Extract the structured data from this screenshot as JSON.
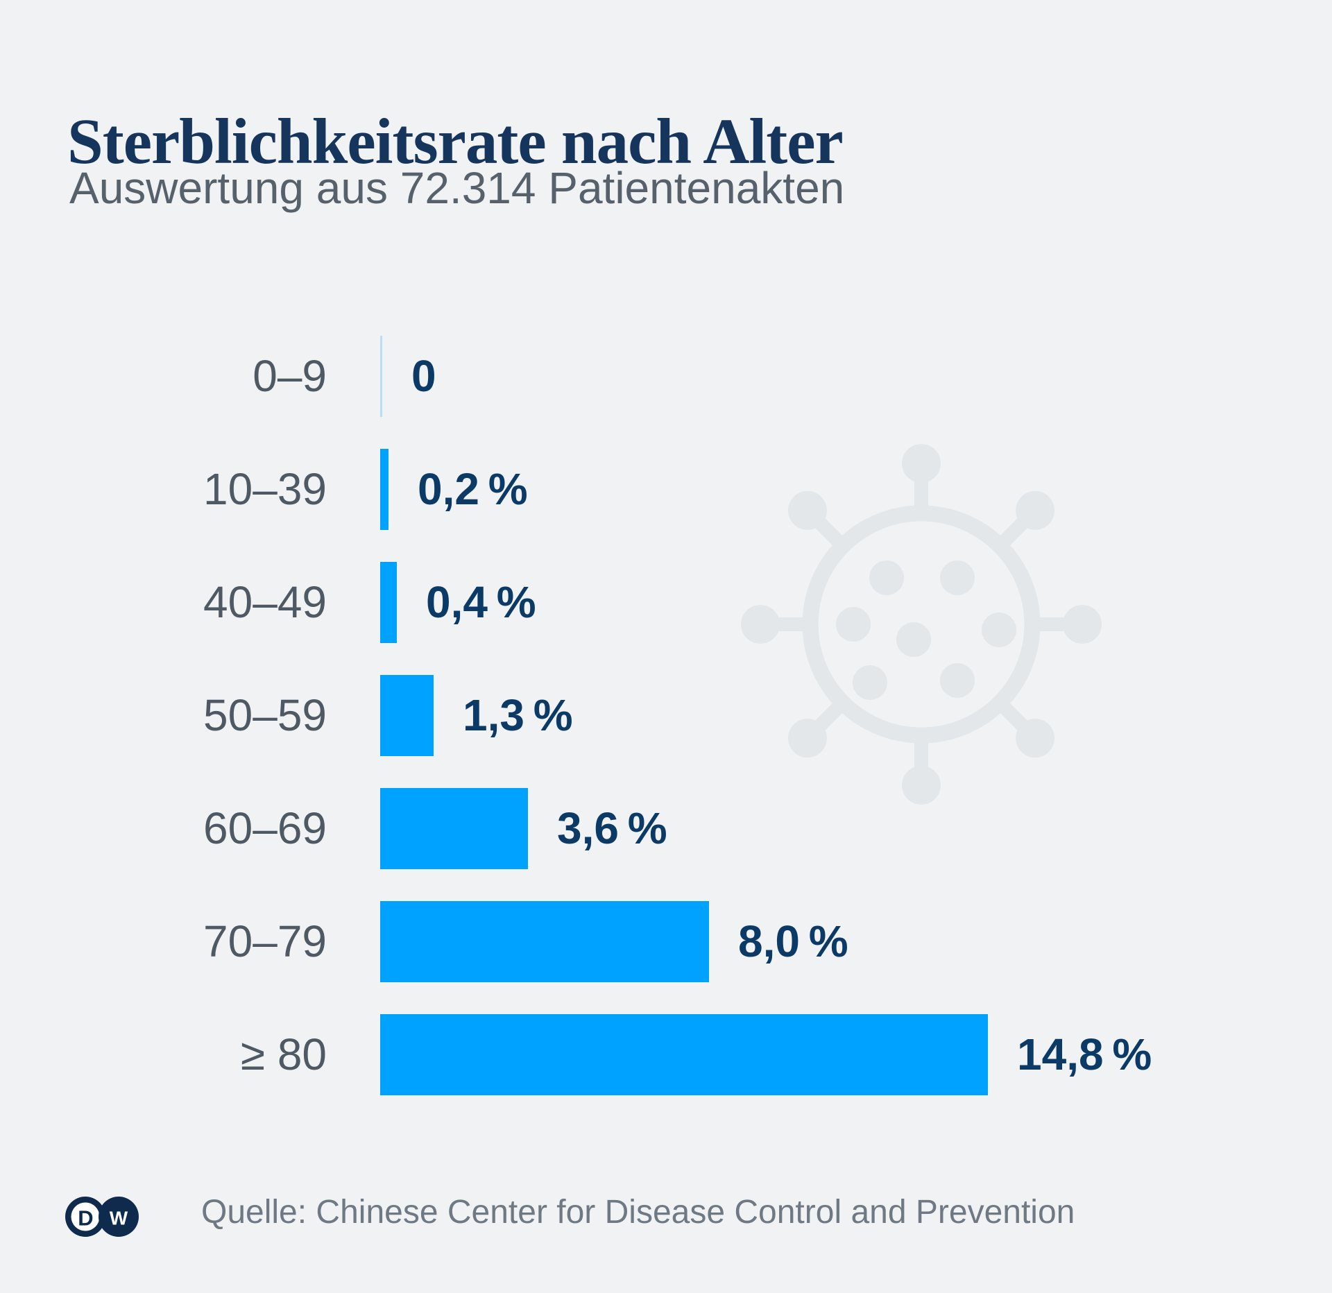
{
  "header": {
    "title": "Sterblichkeitsrate nach Alter",
    "subtitle": "Auswertung aus 72.314 Patientenakten"
  },
  "chart_data": {
    "type": "bar",
    "orientation": "horizontal",
    "title": "Sterblichkeitsrate nach Alter",
    "subtitle": "Auswertung aus 72.314 Patientenakten",
    "categories": [
      "0–9",
      "10–39",
      "40–49",
      "50–59",
      "60–69",
      "70–79",
      "≥ 80"
    ],
    "values": [
      0,
      0.2,
      0.4,
      1.3,
      3.6,
      8.0,
      14.8
    ],
    "value_labels": [
      "0",
      "0,2 %",
      "0,4 %",
      "1,3 %",
      "3,6 %",
      "8,0 %",
      "14,8 %"
    ],
    "unit": "%",
    "xlim": [
      0,
      14.8
    ],
    "grid": false,
    "legend": false,
    "bar_color": "#00a2ff",
    "zero_bar_color": "#badcf4",
    "value_label_color": "#0c3a67",
    "category_label_color": "#4e5963"
  },
  "watermark": {
    "icon": "coronavirus-icon",
    "color": "#e3e7ea"
  },
  "footer": {
    "logo": "DW",
    "logo_letters": {
      "d": "D",
      "w": "W"
    },
    "logo_color": "#0e2a4d",
    "source": "Quelle: Chinese Center for Disease Control and Prevention"
  },
  "colors": {
    "background": "#f0f2f4",
    "title": "#16355d",
    "subtitle": "#57616b",
    "source": "#6f7983"
  }
}
